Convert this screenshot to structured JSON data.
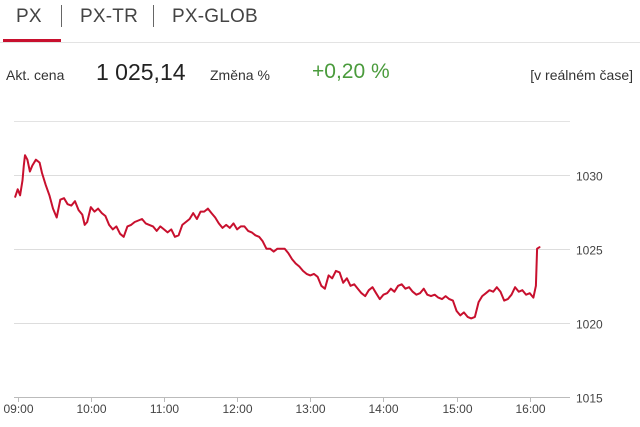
{
  "tabs": [
    {
      "label": "PX",
      "active": true
    },
    {
      "label": "PX-TR",
      "active": false
    },
    {
      "label": "PX-GLOB",
      "active": false
    }
  ],
  "quote": {
    "price_label": "Akt. cena",
    "price": "1 025,14",
    "change_label": "Změna %",
    "change": "+0,20 %",
    "realtime": "[v reálném čase]"
  },
  "colors": {
    "accent": "#c8102e",
    "positive": "#4a9b3c",
    "grid": "#dddddd"
  },
  "chart_data": {
    "type": "line",
    "title": "",
    "xlabel": "",
    "ylabel": "",
    "ylim": [
      1015,
      1033
    ],
    "xlim": [
      "08:57",
      "16:33"
    ],
    "grid": "horizontal",
    "x_ticks": [
      "09:00",
      "10:00",
      "11:00",
      "12:00",
      "13:00",
      "14:00",
      "15:00",
      "16:00"
    ],
    "y_ticks": [
      1015,
      1020,
      1025,
      1030
    ],
    "series": [
      {
        "color": "#c8102e",
        "points": [
          [
            "08:58",
            1028.5
          ],
          [
            "09:00",
            1029.0
          ],
          [
            "09:02",
            1028.6
          ],
          [
            "09:04",
            1029.6
          ],
          [
            "09:05",
            1030.6
          ],
          [
            "09:06",
            1031.3
          ],
          [
            "09:08",
            1031.0
          ],
          [
            "09:10",
            1030.2
          ],
          [
            "09:12",
            1030.6
          ],
          [
            "09:15",
            1031.0
          ],
          [
            "09:18",
            1030.8
          ],
          [
            "09:20",
            1030.1
          ],
          [
            "09:23",
            1029.3
          ],
          [
            "09:26",
            1028.6
          ],
          [
            "09:29",
            1027.7
          ],
          [
            "09:32",
            1027.1
          ],
          [
            "09:35",
            1028.3
          ],
          [
            "09:38",
            1028.4
          ],
          [
            "09:41",
            1028.0
          ],
          [
            "09:44",
            1027.9
          ],
          [
            "09:47",
            1028.2
          ],
          [
            "09:50",
            1027.6
          ],
          [
            "09:53",
            1027.3
          ],
          [
            "09:55",
            1026.6
          ],
          [
            "09:57",
            1026.8
          ],
          [
            "10:00",
            1027.8
          ],
          [
            "10:03",
            1027.5
          ],
          [
            "10:06",
            1027.7
          ],
          [
            "10:09",
            1027.4
          ],
          [
            "10:12",
            1027.2
          ],
          [
            "10:15",
            1026.6
          ],
          [
            "10:18",
            1026.3
          ],
          [
            "10:21",
            1026.5
          ],
          [
            "10:24",
            1026.0
          ],
          [
            "10:27",
            1025.8
          ],
          [
            "10:30",
            1026.5
          ],
          [
            "10:33",
            1026.6
          ],
          [
            "10:36",
            1026.8
          ],
          [
            "10:39",
            1026.9
          ],
          [
            "10:42",
            1027.0
          ],
          [
            "10:45",
            1026.7
          ],
          [
            "10:48",
            1026.6
          ],
          [
            "10:51",
            1026.5
          ],
          [
            "10:54",
            1026.2
          ],
          [
            "10:57",
            1026.5
          ],
          [
            "11:00",
            1026.3
          ],
          [
            "11:03",
            1026.1
          ],
          [
            "11:06",
            1026.3
          ],
          [
            "11:09",
            1025.8
          ],
          [
            "11:12",
            1025.9
          ],
          [
            "11:15",
            1026.6
          ],
          [
            "11:18",
            1026.8
          ],
          [
            "11:21",
            1027.0
          ],
          [
            "11:24",
            1027.4
          ],
          [
            "11:27",
            1027.0
          ],
          [
            "11:30",
            1027.5
          ],
          [
            "11:33",
            1027.5
          ],
          [
            "11:36",
            1027.7
          ],
          [
            "11:39",
            1027.4
          ],
          [
            "11:42",
            1027.1
          ],
          [
            "11:45",
            1026.7
          ],
          [
            "11:48",
            1026.4
          ],
          [
            "11:51",
            1026.6
          ],
          [
            "11:54",
            1026.4
          ],
          [
            "11:57",
            1026.7
          ],
          [
            "12:00",
            1026.3
          ],
          [
            "12:03",
            1026.5
          ],
          [
            "12:06",
            1026.5
          ],
          [
            "12:09",
            1026.2
          ],
          [
            "12:12",
            1026.1
          ],
          [
            "12:15",
            1025.9
          ],
          [
            "12:18",
            1025.8
          ],
          [
            "12:21",
            1025.5
          ],
          [
            "12:24",
            1025.0
          ],
          [
            "12:27",
            1025.0
          ],
          [
            "12:30",
            1024.8
          ],
          [
            "12:33",
            1025.0
          ],
          [
            "12:36",
            1025.0
          ],
          [
            "12:39",
            1025.0
          ],
          [
            "12:42",
            1024.7
          ],
          [
            "12:45",
            1024.3
          ],
          [
            "12:48",
            1024.0
          ],
          [
            "12:51",
            1023.8
          ],
          [
            "12:54",
            1023.5
          ],
          [
            "12:57",
            1023.3
          ],
          [
            "13:00",
            1023.2
          ],
          [
            "13:03",
            1023.3
          ],
          [
            "13:06",
            1023.1
          ],
          [
            "13:09",
            1022.5
          ],
          [
            "13:12",
            1022.3
          ],
          [
            "13:15",
            1023.2
          ],
          [
            "13:18",
            1023.0
          ],
          [
            "13:21",
            1023.5
          ],
          [
            "13:24",
            1023.4
          ],
          [
            "13:27",
            1022.7
          ],
          [
            "13:30",
            1023.0
          ],
          [
            "13:33",
            1022.5
          ],
          [
            "13:36",
            1022.6
          ],
          [
            "13:39",
            1022.3
          ],
          [
            "13:42",
            1022.0
          ],
          [
            "13:45",
            1021.8
          ],
          [
            "13:48",
            1022.2
          ],
          [
            "13:51",
            1022.4
          ],
          [
            "13:54",
            1022.0
          ],
          [
            "13:57",
            1021.6
          ],
          [
            "14:00",
            1021.9
          ],
          [
            "14:03",
            1022.0
          ],
          [
            "14:06",
            1022.3
          ],
          [
            "14:09",
            1022.1
          ],
          [
            "14:12",
            1022.5
          ],
          [
            "14:15",
            1022.6
          ],
          [
            "14:18",
            1022.3
          ],
          [
            "14:21",
            1022.4
          ],
          [
            "14:24",
            1022.1
          ],
          [
            "14:27",
            1021.9
          ],
          [
            "14:30",
            1022.0
          ],
          [
            "14:33",
            1022.3
          ],
          [
            "14:36",
            1021.9
          ],
          [
            "14:39",
            1021.8
          ],
          [
            "14:42",
            1021.9
          ],
          [
            "14:45",
            1021.7
          ],
          [
            "14:48",
            1021.6
          ],
          [
            "14:51",
            1021.8
          ],
          [
            "14:54",
            1021.6
          ],
          [
            "14:57",
            1021.5
          ],
          [
            "15:00",
            1020.8
          ],
          [
            "15:03",
            1020.5
          ],
          [
            "15:06",
            1020.7
          ],
          [
            "15:09",
            1020.4
          ],
          [
            "15:12",
            1020.3
          ],
          [
            "15:15",
            1020.4
          ],
          [
            "15:18",
            1021.4
          ],
          [
            "15:21",
            1021.8
          ],
          [
            "15:24",
            1022.0
          ],
          [
            "15:27",
            1022.2
          ],
          [
            "15:30",
            1022.1
          ],
          [
            "15:33",
            1022.4
          ],
          [
            "15:36",
            1022.1
          ],
          [
            "15:39",
            1021.5
          ],
          [
            "15:42",
            1021.6
          ],
          [
            "15:45",
            1021.9
          ],
          [
            "15:48",
            1022.4
          ],
          [
            "15:51",
            1022.1
          ],
          [
            "15:54",
            1022.2
          ],
          [
            "15:57",
            1021.9
          ],
          [
            "16:00",
            1022.0
          ],
          [
            "16:03",
            1021.7
          ],
          [
            "16:05",
            1022.5
          ],
          [
            "16:06",
            1025.0
          ],
          [
            "16:08",
            1025.1
          ]
        ]
      }
    ]
  }
}
